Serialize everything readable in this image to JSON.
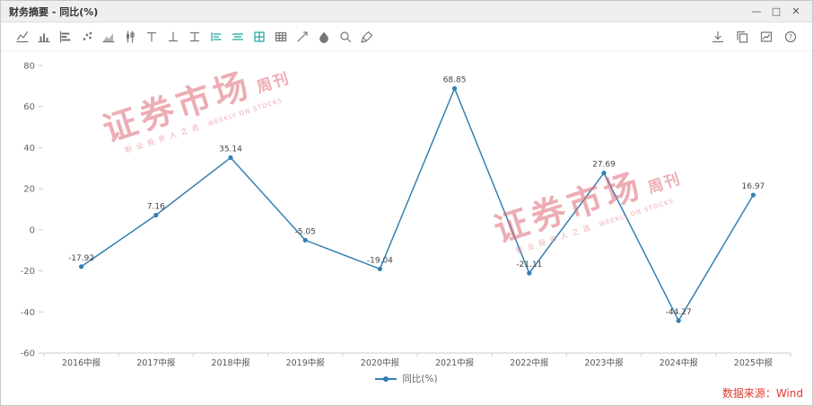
{
  "window": {
    "title": "财务摘要 - 同比(%)",
    "controls": [
      {
        "name": "minimize",
        "glyph": "—"
      },
      {
        "name": "maximize",
        "glyph": "□"
      },
      {
        "name": "close",
        "glyph": "✕"
      }
    ]
  },
  "toolbar": {
    "left_icons": [
      {
        "name": "line-chart",
        "active": false
      },
      {
        "name": "column-chart",
        "active": false
      },
      {
        "name": "bar-chart",
        "active": false
      },
      {
        "name": "scatter-chart",
        "active": false
      },
      {
        "name": "area-chart",
        "active": false
      },
      {
        "name": "candlestick",
        "active": false
      },
      {
        "name": "top-value",
        "active": false
      },
      {
        "name": "bottom-value",
        "active": false
      },
      {
        "name": "interval",
        "active": false
      },
      {
        "name": "axis-left",
        "active": true
      },
      {
        "name": "axis-both",
        "active": true
      },
      {
        "name": "grid-view",
        "active": true
      },
      {
        "name": "data-table",
        "active": false
      },
      {
        "name": "trend-line",
        "active": false
      },
      {
        "name": "fill-color",
        "active": false
      },
      {
        "name": "zoom",
        "active": false
      },
      {
        "name": "brush",
        "active": false
      }
    ],
    "right_icons": [
      {
        "name": "download",
        "active": false
      },
      {
        "name": "copy",
        "active": false
      },
      {
        "name": "chart-edit",
        "active": false
      },
      {
        "name": "help",
        "active": false
      }
    ]
  },
  "chart_data": {
    "type": "line",
    "categories": [
      "2016中报",
      "2017中报",
      "2018中报",
      "2019中报",
      "2020中报",
      "2021中报",
      "2022中报",
      "2023中报",
      "2024中报",
      "2025中报"
    ],
    "values": [
      -17.92,
      7.16,
      35.14,
      -5.05,
      -19.04,
      68.85,
      -21.11,
      27.69,
      -44.27,
      16.97
    ],
    "series_name": "同比(%)",
    "ylim": [
      -60,
      80
    ],
    "yticks": [
      80,
      60,
      40,
      20,
      0,
      -20,
      -40,
      -60
    ],
    "line_color": "#3580b2",
    "grid": false,
    "legend_position": "bottom"
  },
  "legend": {
    "label": "同比(%)"
  },
  "source": {
    "text": "数据来源：Wind"
  },
  "watermark": {
    "main": "证券市场",
    "suffix": "周刊",
    "sub_cn": "职业投资人之选",
    "sub_en": "WEEKLY ON STOCKS"
  }
}
